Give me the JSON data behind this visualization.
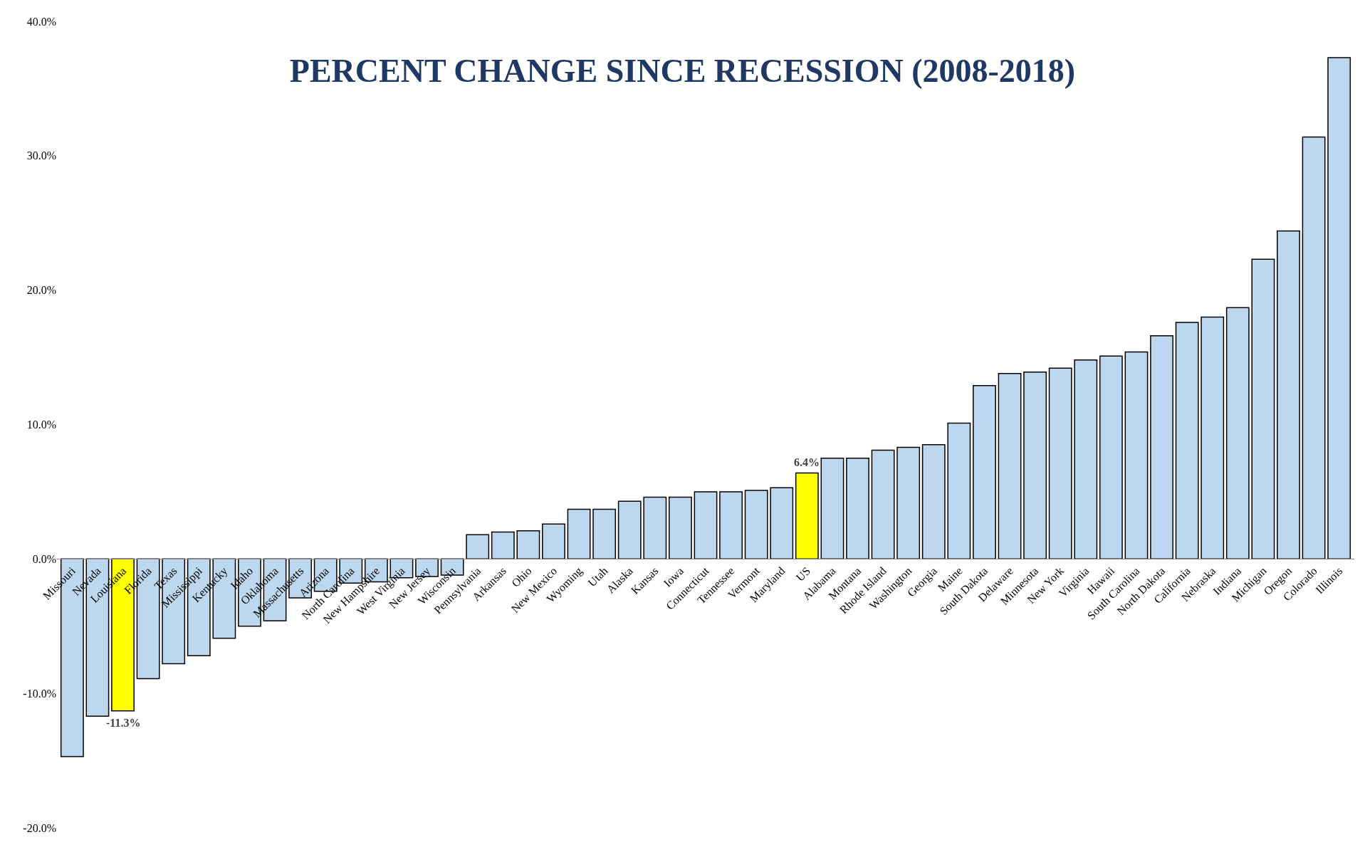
{
  "chart_data": {
    "type": "bar",
    "title": "PERCENT CHANGE SINCE RECESSION (2008-2018)",
    "categories": [
      "Missouri",
      "Nevada",
      "Louisiana",
      "Florida",
      "Texas",
      "Mississippi",
      "Kentucky",
      "Idaho",
      "Oklahoma",
      "Massachusetts",
      "Arizona",
      "North Carolina",
      "New Hampshire",
      "West Virginia",
      "New Jersey",
      "Wisconsin",
      "Pennsylvania",
      "Arkansas",
      "Ohio",
      "New Mexico",
      "Wyoming",
      "Utah",
      "Alaska",
      "Kansas",
      "Iowa",
      "Connecticut",
      "Tennessee",
      "Vermont",
      "Maryland",
      "US",
      "Alabama",
      "Montana",
      "Rhode Island",
      "Washington",
      "Georgia",
      "Maine",
      "South Dakota",
      "Delaware",
      "Minnesota",
      "New York",
      "Virginia",
      "Hawaii",
      "South Carolina",
      "North Dakota",
      "California",
      "Nebraska",
      "Indiana",
      "Michigan",
      "Oregon",
      "Colorado",
      "Illinois"
    ],
    "values": [
      -14.7,
      -11.7,
      -11.3,
      -8.9,
      -7.8,
      -7.2,
      -5.9,
      -5.0,
      -4.6,
      -2.9,
      -2.4,
      -1.8,
      -1.7,
      -1.4,
      -1.3,
      -1.2,
      1.8,
      2.0,
      2.1,
      2.6,
      3.7,
      3.7,
      4.3,
      4.6,
      4.6,
      5.0,
      5.0,
      5.1,
      5.3,
      6.4,
      7.5,
      7.5,
      8.1,
      8.3,
      8.5,
      10.1,
      12.9,
      13.8,
      13.9,
      14.2,
      14.8,
      15.1,
      15.4,
      16.6,
      17.6,
      18.0,
      18.7,
      22.3,
      24.4,
      31.4,
      37.3
    ],
    "colors": [
      "#bdd7ee",
      "#bdd7ee",
      "#ffff00",
      "#bdd7ee",
      "#bdd7ee",
      "#bdd7ee",
      "#bdd7ee",
      "#bdd7ee",
      "#bdd7ee",
      "#bdd7ee",
      "#bdd7ee",
      "#bdd7ee",
      "#bdd7ee",
      "#bdd7ee",
      "#bdd7ee",
      "#bdd7ee",
      "#bdd7ee",
      "#bdd7ee",
      "#bdd7ee",
      "#bdd7ee",
      "#bdd7ee",
      "#bdd7ee",
      "#bdd7ee",
      "#bdd7ee",
      "#bdd7ee",
      "#bdd7ee",
      "#bdd7ee",
      "#bdd7ee",
      "#bdd7ee",
      "#ffff00",
      "#bdd7ee",
      "#bdd7ee",
      "#bdd7ee",
      "#bdd7ee",
      "#bdd7ee",
      "#bdd7ee",
      "#bdd7ee",
      "#bdd7ee",
      "#bdd7ee",
      "#bdd7ee",
      "#bdd7ee",
      "#bdd7ee",
      "#bdd7ee",
      "#bdd7ee",
      "#bdd7ee",
      "#bdd7ee",
      "#bdd7ee",
      "#bdd7ee",
      "#bdd7ee",
      "#bdd7ee",
      "#bdd7ee"
    ],
    "value_labels": [
      null,
      null,
      "-11.3%",
      null,
      null,
      null,
      null,
      null,
      null,
      null,
      null,
      null,
      null,
      null,
      null,
      null,
      null,
      null,
      null,
      null,
      null,
      null,
      null,
      null,
      null,
      null,
      null,
      null,
      null,
      "6.4%",
      null,
      null,
      null,
      null,
      null,
      null,
      null,
      null,
      null,
      null,
      null,
      null,
      null,
      null,
      null,
      null,
      null,
      null,
      null,
      null,
      null
    ],
    "ylim": [
      -20,
      40
    ],
    "yticks": [
      {
        "value": -20,
        "label": "-20.0%"
      },
      {
        "value": -10,
        "label": "-10.0%"
      },
      {
        "value": 0,
        "label": "0.0%"
      },
      {
        "value": 10,
        "label": "10.0%"
      },
      {
        "value": 20,
        "label": "20.0%"
      },
      {
        "value": 30,
        "label": "30.0%"
      },
      {
        "value": 40,
        "label": "40.0%"
      }
    ],
    "orientation": "vertical"
  }
}
